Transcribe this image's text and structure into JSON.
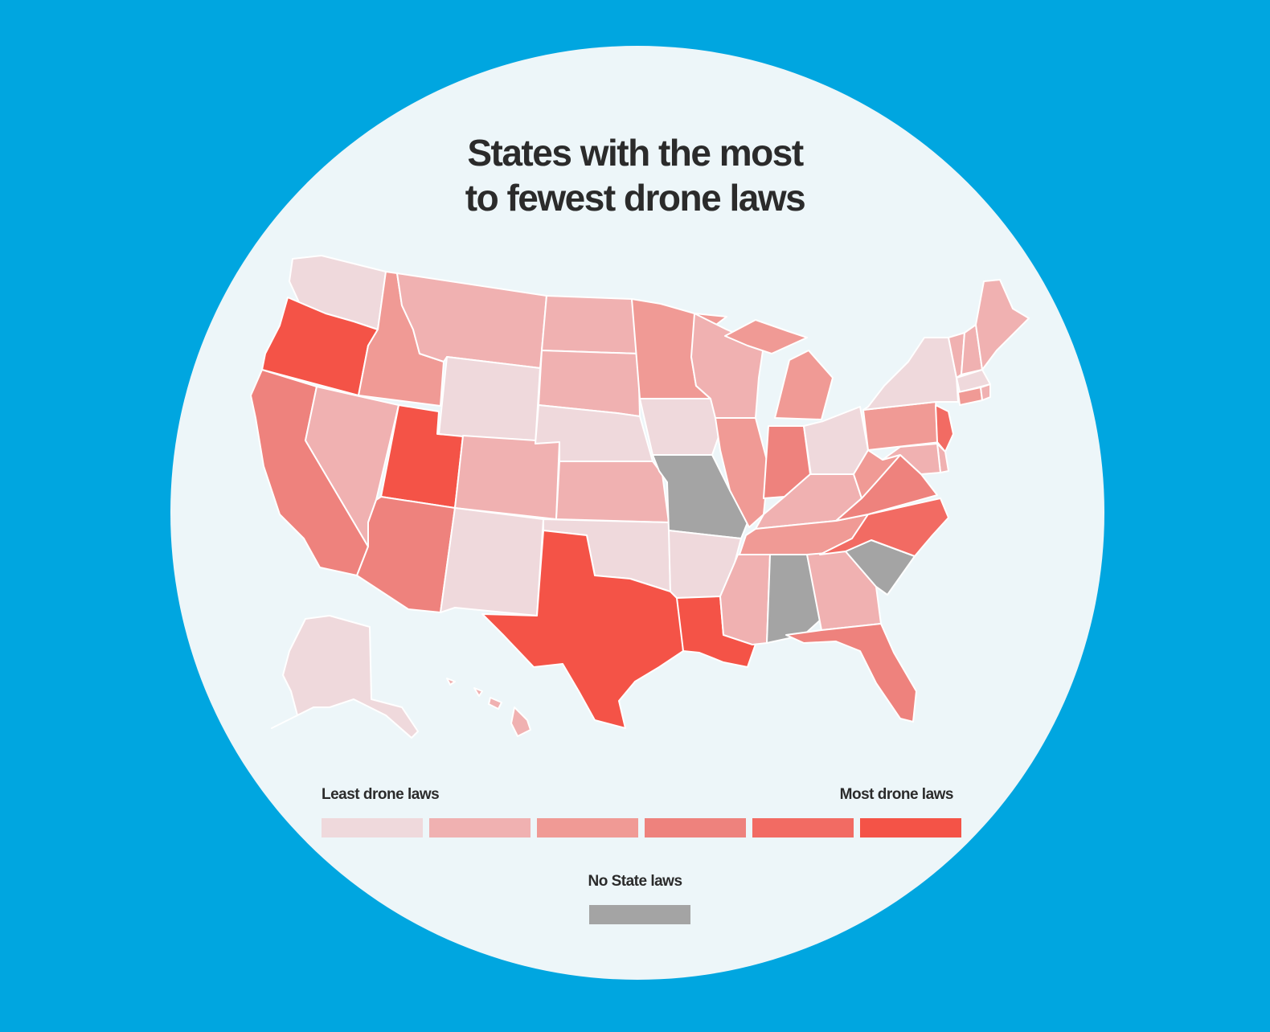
{
  "title": {
    "line1": "States with the most",
    "line2": "to fewest drone laws"
  },
  "colors": {
    "background": "#00a6e0",
    "circle": "#edf6f9",
    "level1": "#efd9dc",
    "level2": "#f0b1b1",
    "level3": "#f09a95",
    "level4": "#ee827d",
    "level5": "#f26b63",
    "level6": "#f45347",
    "no_laws": "#a4a4a4"
  },
  "legend": {
    "least_label": "Least drone laws",
    "most_label": "Most drone laws",
    "no_laws_label": "No State laws",
    "levels": [
      1,
      2,
      3,
      4,
      5,
      6
    ]
  },
  "states": [
    {
      "id": "WA",
      "level": 1
    },
    {
      "id": "OR",
      "level": 6
    },
    {
      "id": "CA",
      "level": 4
    },
    {
      "id": "ID",
      "level": 3
    },
    {
      "id": "NV",
      "level": 2
    },
    {
      "id": "UT",
      "level": 6
    },
    {
      "id": "AZ",
      "level": 4
    },
    {
      "id": "MT",
      "level": 2
    },
    {
      "id": "WY",
      "level": 1
    },
    {
      "id": "CO",
      "level": 2
    },
    {
      "id": "NM",
      "level": 1
    },
    {
      "id": "ND",
      "level": 2
    },
    {
      "id": "SD",
      "level": 2
    },
    {
      "id": "NE",
      "level": 1
    },
    {
      "id": "KS",
      "level": 2
    },
    {
      "id": "OK",
      "level": 1
    },
    {
      "id": "TX",
      "level": 6
    },
    {
      "id": "MN",
      "level": 3
    },
    {
      "id": "IA",
      "level": 1
    },
    {
      "id": "MO",
      "level": 0
    },
    {
      "id": "AR",
      "level": 1
    },
    {
      "id": "LA",
      "level": 6
    },
    {
      "id": "WI",
      "level": 2
    },
    {
      "id": "IL",
      "level": 3
    },
    {
      "id": "MI",
      "level": 3
    },
    {
      "id": "IN",
      "level": 4
    },
    {
      "id": "OH",
      "level": 1
    },
    {
      "id": "KY",
      "level": 2
    },
    {
      "id": "TN",
      "level": 3
    },
    {
      "id": "MS",
      "level": 2
    },
    {
      "id": "AL",
      "level": 0
    },
    {
      "id": "GA",
      "level": 2
    },
    {
      "id": "FL",
      "level": 4
    },
    {
      "id": "SC",
      "level": 0
    },
    {
      "id": "NC",
      "level": 5
    },
    {
      "id": "VA",
      "level": 4
    },
    {
      "id": "WV",
      "level": 3
    },
    {
      "id": "PA",
      "level": 3
    },
    {
      "id": "NY",
      "level": 1
    },
    {
      "id": "VT",
      "level": 2
    },
    {
      "id": "NH",
      "level": 2
    },
    {
      "id": "ME",
      "level": 2
    },
    {
      "id": "MA",
      "level": 1
    },
    {
      "id": "CT",
      "level": 3
    },
    {
      "id": "RI",
      "level": 2
    },
    {
      "id": "NJ",
      "level": 5
    },
    {
      "id": "DE",
      "level": 2
    },
    {
      "id": "MD",
      "level": 2
    },
    {
      "id": "AK",
      "level": 1
    },
    {
      "id": "HI",
      "level": 2
    }
  ]
}
